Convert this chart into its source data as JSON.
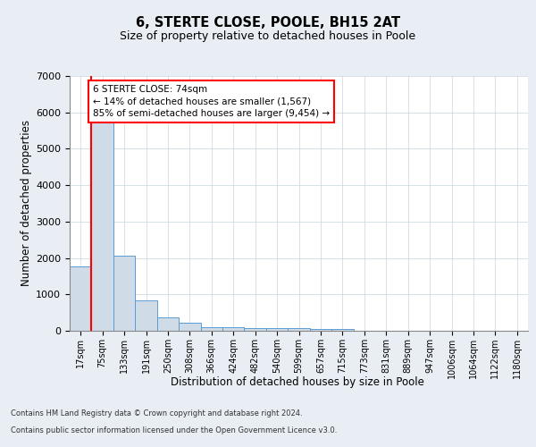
{
  "title1": "6, STERTE CLOSE, POOLE, BH15 2AT",
  "title2": "Size of property relative to detached houses in Poole",
  "xlabel": "Distribution of detached houses by size in Poole",
  "ylabel": "Number of detached properties",
  "bar_labels": [
    "17sqm",
    "75sqm",
    "133sqm",
    "191sqm",
    "250sqm",
    "308sqm",
    "366sqm",
    "424sqm",
    "482sqm",
    "540sqm",
    "599sqm",
    "657sqm",
    "715sqm",
    "773sqm",
    "831sqm",
    "889sqm",
    "947sqm",
    "1006sqm",
    "1064sqm",
    "1122sqm",
    "1180sqm"
  ],
  "bar_values": [
    1780,
    5770,
    2060,
    840,
    380,
    220,
    110,
    110,
    70,
    70,
    70,
    50,
    50,
    0,
    0,
    0,
    0,
    0,
    0,
    0,
    0
  ],
  "bar_color": "#cfdce8",
  "bar_edge_color": "#5b9bd5",
  "ylim": [
    0,
    7000
  ],
  "yticks": [
    0,
    1000,
    2000,
    3000,
    4000,
    5000,
    6000,
    7000
  ],
  "annotation_text": "6 STERTE CLOSE: 74sqm\n← 14% of detached houses are smaller (1,567)\n85% of semi-detached houses are larger (9,454) →",
  "annotation_box_color": "white",
  "annotation_border_color": "red",
  "red_line_color": "red",
  "bg_color": "#e8eef4",
  "plot_bg_color": "white",
  "grid_color": "#c8d4dc",
  "footnote1": "Contains HM Land Registry data © Crown copyright and database right 2024.",
  "footnote2": "Contains public sector information licensed under the Open Government Licence v3.0."
}
